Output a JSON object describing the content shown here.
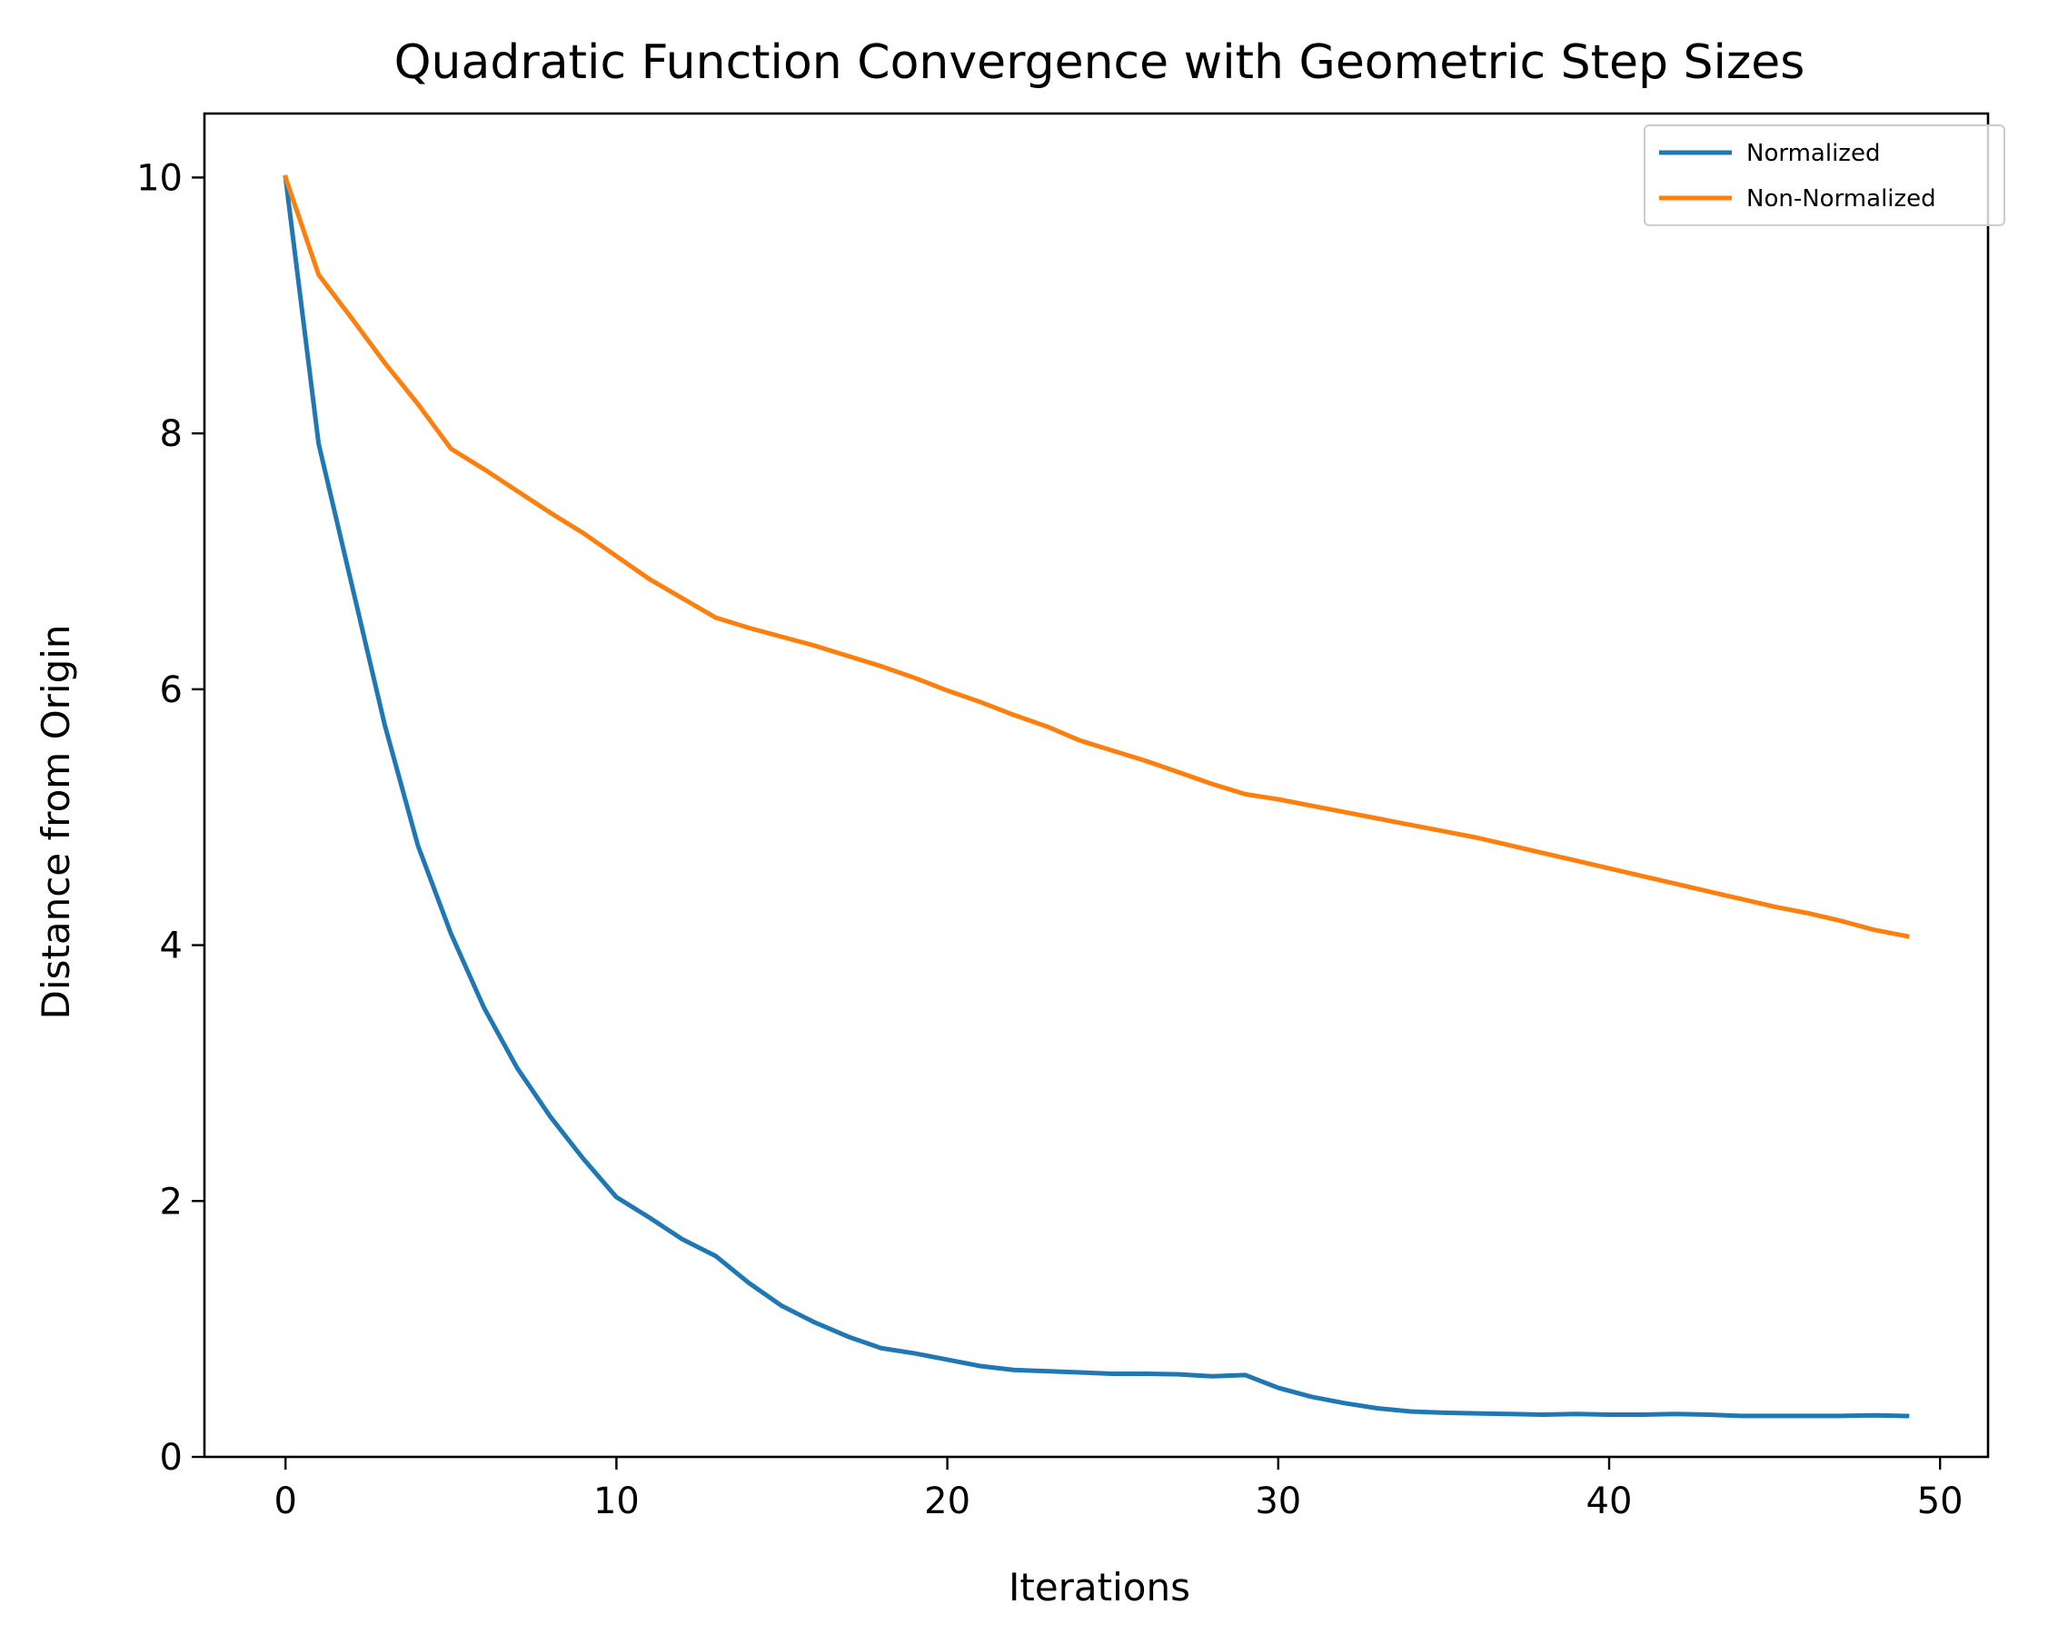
{
  "chart_data": {
    "type": "line",
    "title": "Quadratic Function Convergence with Geometric Step Sizes",
    "xlabel": "Iterations",
    "ylabel": "Distance from Origin",
    "xlim": [
      -2.45,
      51.45
    ],
    "ylim": [
      0,
      10.5
    ],
    "xticks": [
      0,
      10,
      20,
      30,
      40,
      50
    ],
    "yticks": [
      0,
      2,
      4,
      6,
      8,
      10
    ],
    "grid": false,
    "legend_position": "top-right",
    "x": [
      0,
      1,
      2,
      3,
      4,
      5,
      6,
      7,
      8,
      9,
      10,
      11,
      12,
      13,
      14,
      15,
      16,
      17,
      18,
      19,
      20,
      21,
      22,
      23,
      24,
      25,
      26,
      27,
      28,
      29,
      30,
      31,
      32,
      33,
      34,
      35,
      36,
      37,
      38,
      39,
      40,
      41,
      42,
      43,
      44,
      45,
      46,
      47,
      48,
      49
    ],
    "series": [
      {
        "name": "Normalized",
        "color": "#1f77b4",
        "values": [
          10.0,
          7.92,
          6.82,
          5.72,
          4.78,
          4.09,
          3.51,
          3.04,
          2.66,
          2.33,
          2.03,
          1.87,
          1.7,
          1.57,
          1.36,
          1.18,
          1.05,
          0.94,
          0.85,
          0.81,
          0.76,
          0.71,
          0.68,
          0.67,
          0.66,
          0.65,
          0.65,
          0.645,
          0.63,
          0.64,
          0.54,
          0.47,
          0.42,
          0.38,
          0.355,
          0.345,
          0.34,
          0.335,
          0.33,
          0.335,
          0.33,
          0.33,
          0.335,
          0.33,
          0.32,
          0.32,
          0.32,
          0.32,
          0.325,
          0.32
        ]
      },
      {
        "name": "Non-Normalized",
        "color": "#ff7f0e",
        "values": [
          10.0,
          9.24,
          8.9,
          8.55,
          8.23,
          7.88,
          7.72,
          7.55,
          7.38,
          7.22,
          7.04,
          6.86,
          6.71,
          6.56,
          6.48,
          6.41,
          6.34,
          6.26,
          6.18,
          6.09,
          5.99,
          5.9,
          5.8,
          5.71,
          5.6,
          5.52,
          5.44,
          5.35,
          5.26,
          5.18,
          5.14,
          5.09,
          5.04,
          4.99,
          4.94,
          4.89,
          4.84,
          4.78,
          4.72,
          4.66,
          4.6,
          4.54,
          4.48,
          4.42,
          4.36,
          4.3,
          4.25,
          4.19,
          4.12,
          4.07
        ]
      }
    ]
  }
}
